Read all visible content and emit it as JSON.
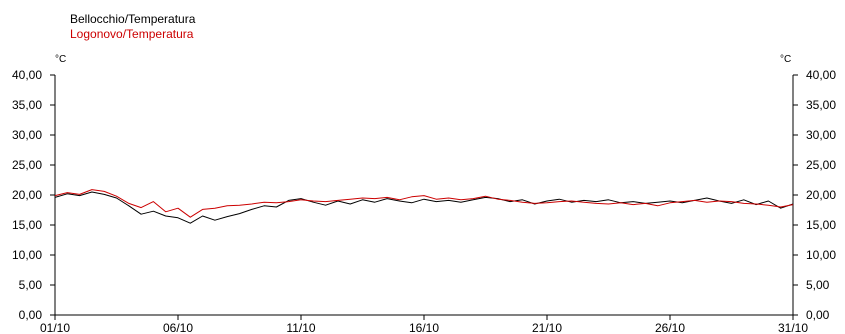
{
  "chart_data": {
    "type": "line",
    "title": "",
    "xlabel": "",
    "ylabel": "°C",
    "ylabel_right": "°C",
    "ylim": [
      0,
      40
    ],
    "yticks": [
      "0,00",
      "5,00",
      "10,00",
      "15,00",
      "20,00",
      "25,00",
      "30,00",
      "35,00",
      "40,00"
    ],
    "xlim": [
      "01/10",
      "31/10"
    ],
    "xticks": [
      "01/10",
      "06/10",
      "11/10",
      "16/10",
      "21/10",
      "26/10",
      "31/10"
    ],
    "grid": false,
    "legend_position": "top-left",
    "series": [
      {
        "name": "Bellocchio/Temperatura",
        "color": "#000000",
        "x": [
          "01/10",
          "01/10 12h",
          "02/10",
          "02/10 12h",
          "03/10",
          "03/10 12h",
          "04/10",
          "04/10 12h",
          "05/10",
          "05/10 12h",
          "06/10",
          "06/10 12h",
          "07/10",
          "07/10 12h",
          "08/10",
          "08/10 12h",
          "09/10",
          "09/10 12h",
          "10/10",
          "10/10 12h",
          "11/10",
          "11/10 12h",
          "12/10",
          "12/10 12h",
          "13/10",
          "13/10 12h",
          "14/10",
          "14/10 12h",
          "15/10",
          "15/10 12h",
          "16/10",
          "16/10 12h",
          "17/10",
          "17/10 12h",
          "18/10",
          "18/10 12h",
          "19/10",
          "19/10 12h",
          "20/10",
          "20/10 12h",
          "21/10",
          "21/10 12h",
          "22/10",
          "22/10 12h",
          "23/10",
          "23/10 12h",
          "24/10",
          "24/10 12h",
          "25/10",
          "25/10 12h",
          "26/10",
          "26/10 12h",
          "27/10",
          "27/10 12h",
          "28/10",
          "28/10 12h",
          "29/10",
          "29/10 12h",
          "30/10",
          "30/10 12h",
          "31/10"
        ],
        "values": [
          19.6,
          20.2,
          19.9,
          20.5,
          20.1,
          19.5,
          18.2,
          16.8,
          17.3,
          16.5,
          16.2,
          15.3,
          16.5,
          15.8,
          16.4,
          16.9,
          17.6,
          18.2,
          18.0,
          19.1,
          19.4,
          18.8,
          18.3,
          19.0,
          18.5,
          19.2,
          18.8,
          19.4,
          19.0,
          18.7,
          19.3,
          18.9,
          19.1,
          18.8,
          19.2,
          19.6,
          19.4,
          18.9,
          19.2,
          18.5,
          19.0,
          19.3,
          18.8,
          19.1,
          18.9,
          19.2,
          18.7,
          18.9,
          18.6,
          18.8,
          19.0,
          18.7,
          19.1,
          19.5,
          19.0,
          18.6,
          19.2,
          18.4,
          19.0,
          17.8,
          18.5
        ]
      },
      {
        "name": "Logonovo/Temperatura",
        "color": "#cc0000",
        "x": [
          "01/10",
          "01/10 12h",
          "02/10",
          "02/10 12h",
          "03/10",
          "03/10 12h",
          "04/10",
          "04/10 12h",
          "05/10",
          "05/10 12h",
          "06/10",
          "06/10 12h",
          "07/10",
          "07/10 12h",
          "08/10",
          "08/10 12h",
          "09/10",
          "09/10 12h",
          "10/10",
          "10/10 12h",
          "11/10",
          "11/10 12h",
          "12/10",
          "12/10 12h",
          "13/10",
          "13/10 12h",
          "14/10",
          "14/10 12h",
          "15/10",
          "15/10 12h",
          "16/10",
          "16/10 12h",
          "17/10",
          "17/10 12h",
          "18/10",
          "18/10 12h",
          "19/10",
          "19/10 12h",
          "20/10",
          "20/10 12h",
          "21/10",
          "21/10 12h",
          "22/10",
          "22/10 12h",
          "23/10",
          "23/10 12h",
          "24/10",
          "24/10 12h",
          "25/10",
          "25/10 12h",
          "26/10",
          "26/10 12h",
          "27/10",
          "27/10 12h",
          "28/10",
          "28/10 12h",
          "29/10",
          "29/10 12h",
          "30/10",
          "30/10 12h",
          "31/10"
        ],
        "values": [
          19.9,
          20.4,
          20.1,
          20.9,
          20.6,
          19.8,
          18.6,
          17.9,
          18.9,
          17.2,
          17.8,
          16.3,
          17.6,
          17.8,
          18.2,
          18.3,
          18.5,
          18.8,
          18.7,
          18.9,
          19.2,
          19.0,
          18.9,
          19.1,
          19.3,
          19.5,
          19.4,
          19.6,
          19.2,
          19.7,
          19.9,
          19.3,
          19.5,
          19.2,
          19.4,
          19.8,
          19.3,
          19.1,
          18.8,
          18.6,
          18.7,
          18.9,
          19.0,
          18.8,
          18.6,
          18.5,
          18.7,
          18.4,
          18.6,
          18.2,
          18.7,
          18.9,
          19.1,
          18.8,
          19.0,
          18.9,
          18.6,
          18.5,
          18.3,
          18.0,
          18.4
        ]
      }
    ]
  }
}
